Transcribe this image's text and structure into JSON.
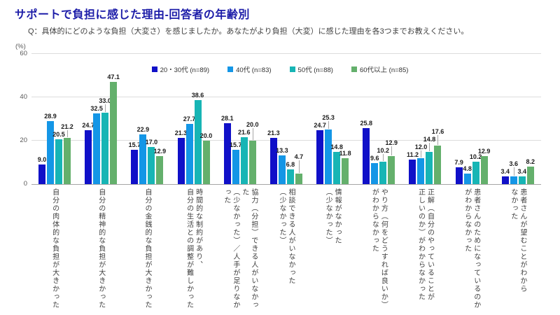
{
  "chart_data": {
    "type": "bar",
    "title": "サポートで負担に感じた理由-回答者の年齢別",
    "subtitle": "Q：具体的にどのような負担（大変さ）を感じましたか。あなたがより負担（大変）に感じた理由を各3つまでお教えください。",
    "unit_label": "(%)",
    "ylim": [
      0,
      60
    ],
    "yticks": [
      0,
      20,
      40,
      60
    ],
    "grid": true,
    "legend_position": "top",
    "categories": [
      "自分の肉体的な負担が大きかった",
      "自分の精神的な負担が大きかった",
      "自分の金銭的な負担が大きかった",
      "時間的な制約があり、\n自分の生活との調整が難しかった",
      "協力（分担）できる人がいなかった\n（少なかった）／人手が足りなかった",
      "相談できる人がいなかった\n（少なかった）",
      "情報がなかった\n（少なかった）",
      "やり方（何をどうすれば良いか）\nがわからなかった",
      "正解（自分のやっていることが\n正しいのか）がわからなかった",
      "患者さんのためになっているのか\nがわからなかった",
      "患者さんが望むことがわから\nなかった"
    ],
    "series": [
      {
        "name": "20・30代 (n=89)",
        "color": "#1010c8",
        "values": [
          9.0,
          24.7,
          15.7,
          21.3,
          28.1,
          21.3,
          24.7,
          25.8,
          11.2,
          7.9,
          3.4
        ]
      },
      {
        "name": "40代 (n=83)",
        "color": "#1496e6",
        "values": [
          28.9,
          32.5,
          22.9,
          27.7,
          15.7,
          13.3,
          25.3,
          9.6,
          12.0,
          4.8,
          3.6
        ]
      },
      {
        "name": "50代 (n=88)",
        "color": "#17b5b5",
        "values": [
          20.5,
          33.0,
          17.0,
          38.6,
          21.6,
          6.8,
          14.8,
          10.2,
          14.8,
          10.2,
          3.4
        ]
      },
      {
        "name": "60代以上 (n=85)",
        "color": "#64b06c",
        "values": [
          21.2,
          47.1,
          12.9,
          20.0,
          20.0,
          4.7,
          11.8,
          12.9,
          17.6,
          12.9,
          8.2
        ]
      }
    ]
  }
}
